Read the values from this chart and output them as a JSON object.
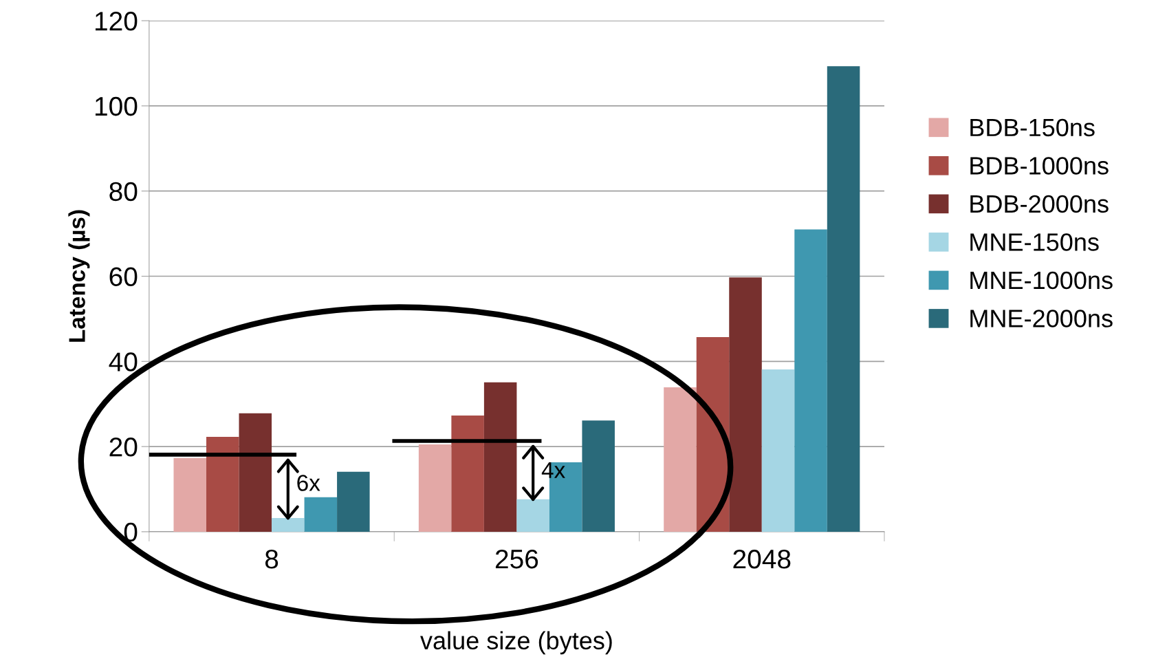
{
  "chart_data": {
    "type": "bar",
    "xlabel": "value size (bytes)",
    "ylabel": "Latency (µs)",
    "categories": [
      "8",
      "256",
      "2048"
    ],
    "series": [
      {
        "name": "BDB-150ns",
        "color": "#e3a8a6",
        "values": [
          17.3,
          20.5,
          33.9
        ]
      },
      {
        "name": "BDB-1000ns",
        "color": "#a84b45",
        "values": [
          22.3,
          27.3,
          45.7
        ]
      },
      {
        "name": "BDB-2000ns",
        "color": "#77302e",
        "values": [
          27.8,
          35.1,
          59.7
        ]
      },
      {
        "name": "MNE-150ns",
        "color": "#a5d6e4",
        "values": [
          3.2,
          7.6,
          38.1
        ]
      },
      {
        "name": "MNE-1000ns",
        "color": "#3f98b0",
        "values": [
          8.1,
          16.3,
          71.0
        ]
      },
      {
        "name": "MNE-2000ns",
        "color": "#2a6a7a",
        "values": [
          14.1,
          26.1,
          109.3
        ]
      }
    ],
    "ylim": [
      0,
      120
    ],
    "yticks": [
      0,
      20,
      40,
      60,
      80,
      100,
      120
    ],
    "grid": "y",
    "legend": "right",
    "annotations": [
      {
        "text": "6x",
        "x": "8",
        "y": 11
      },
      {
        "text": "4x",
        "x": "256",
        "y": 14
      }
    ]
  }
}
